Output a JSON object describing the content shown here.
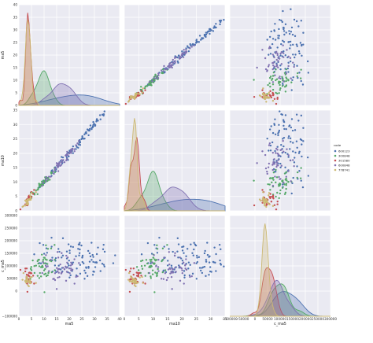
{
  "chart_data": {
    "type": "pairplot",
    "variables": [
      "ma5",
      "ma10",
      "c_ma5"
    ],
    "axis_labels": {
      "ma5": "ma5",
      "ma10": "ma10",
      "c_ma5": "c_ma5"
    },
    "ranges": {
      "ma5": [
        0,
        40
      ],
      "ma10": [
        0,
        35
      ],
      "c_ma5": [
        -100000,
        300000
      ]
    },
    "ticks": {
      "ma5": [
        0,
        5,
        10,
        15,
        20,
        25,
        30,
        35,
        40
      ],
      "ma10": [
        0,
        5,
        10,
        15,
        20,
        25,
        30,
        35
      ],
      "c_ma5": [
        -100000,
        0,
        50000,
        100000,
        150000,
        200000,
        250000,
        300000
      ]
    },
    "x_tick_labels": {
      "ma5": [
        "0",
        "5",
        "10",
        "15",
        "20",
        "25",
        "30",
        "35",
        "40"
      ],
      "ma10": [
        "0",
        "5",
        "10",
        "15",
        "20",
        "25",
        "30",
        "35"
      ],
      "c_ma5": [
        "−100000",
        "−50000",
        "0",
        "50000",
        "100000",
        "150000",
        "200000",
        "250000",
        "300000"
      ]
    },
    "x_tick_values_c_ma5": [
      -100000,
      -50000,
      0,
      50000,
      100000,
      150000,
      200000,
      250000,
      300000
    ],
    "y_tick_labels": {
      "ma5": [
        "0",
        "5",
        "10",
        "15",
        "20",
        "25",
        "30",
        "35",
        "40"
      ],
      "ma10": [
        "0",
        "5",
        "10",
        "15",
        "20",
        "25",
        "30",
        "35"
      ],
      "c_ma5": [
        "−100000",
        "0",
        "50000",
        "100000",
        "150000",
        "200000",
        "250000",
        "300000"
      ]
    },
    "hue_title": "code",
    "legend_position": "right",
    "grid": true,
    "background": "#eaeaf2",
    "series": [
      {
        "name": "600123",
        "color": "#4c72b0",
        "center": [
          22,
          22,
          125000
        ],
        "spread": [
          8,
          7,
          40000
        ],
        "count": 100
      },
      {
        "name": "300848",
        "color": "#55a868",
        "center": [
          10,
          10,
          100000
        ],
        "spread": [
          2.5,
          2.5,
          30000
        ],
        "count": 50
      },
      {
        "name": "301580",
        "color": "#c44e52",
        "center": [
          4,
          4,
          55000
        ],
        "spread": [
          1,
          1,
          20000
        ],
        "count": 30
      },
      {
        "name": "600848",
        "color": "#8172b2",
        "center": [
          17,
          17,
          85000
        ],
        "spread": [
          3.5,
          3.5,
          30000
        ],
        "count": 50
      },
      {
        "name": "778741",
        "color": "#ccb974",
        "center": [
          3.5,
          3.5,
          40000
        ],
        "spread": [
          1,
          1,
          15000
        ],
        "count": 30
      }
    ]
  }
}
